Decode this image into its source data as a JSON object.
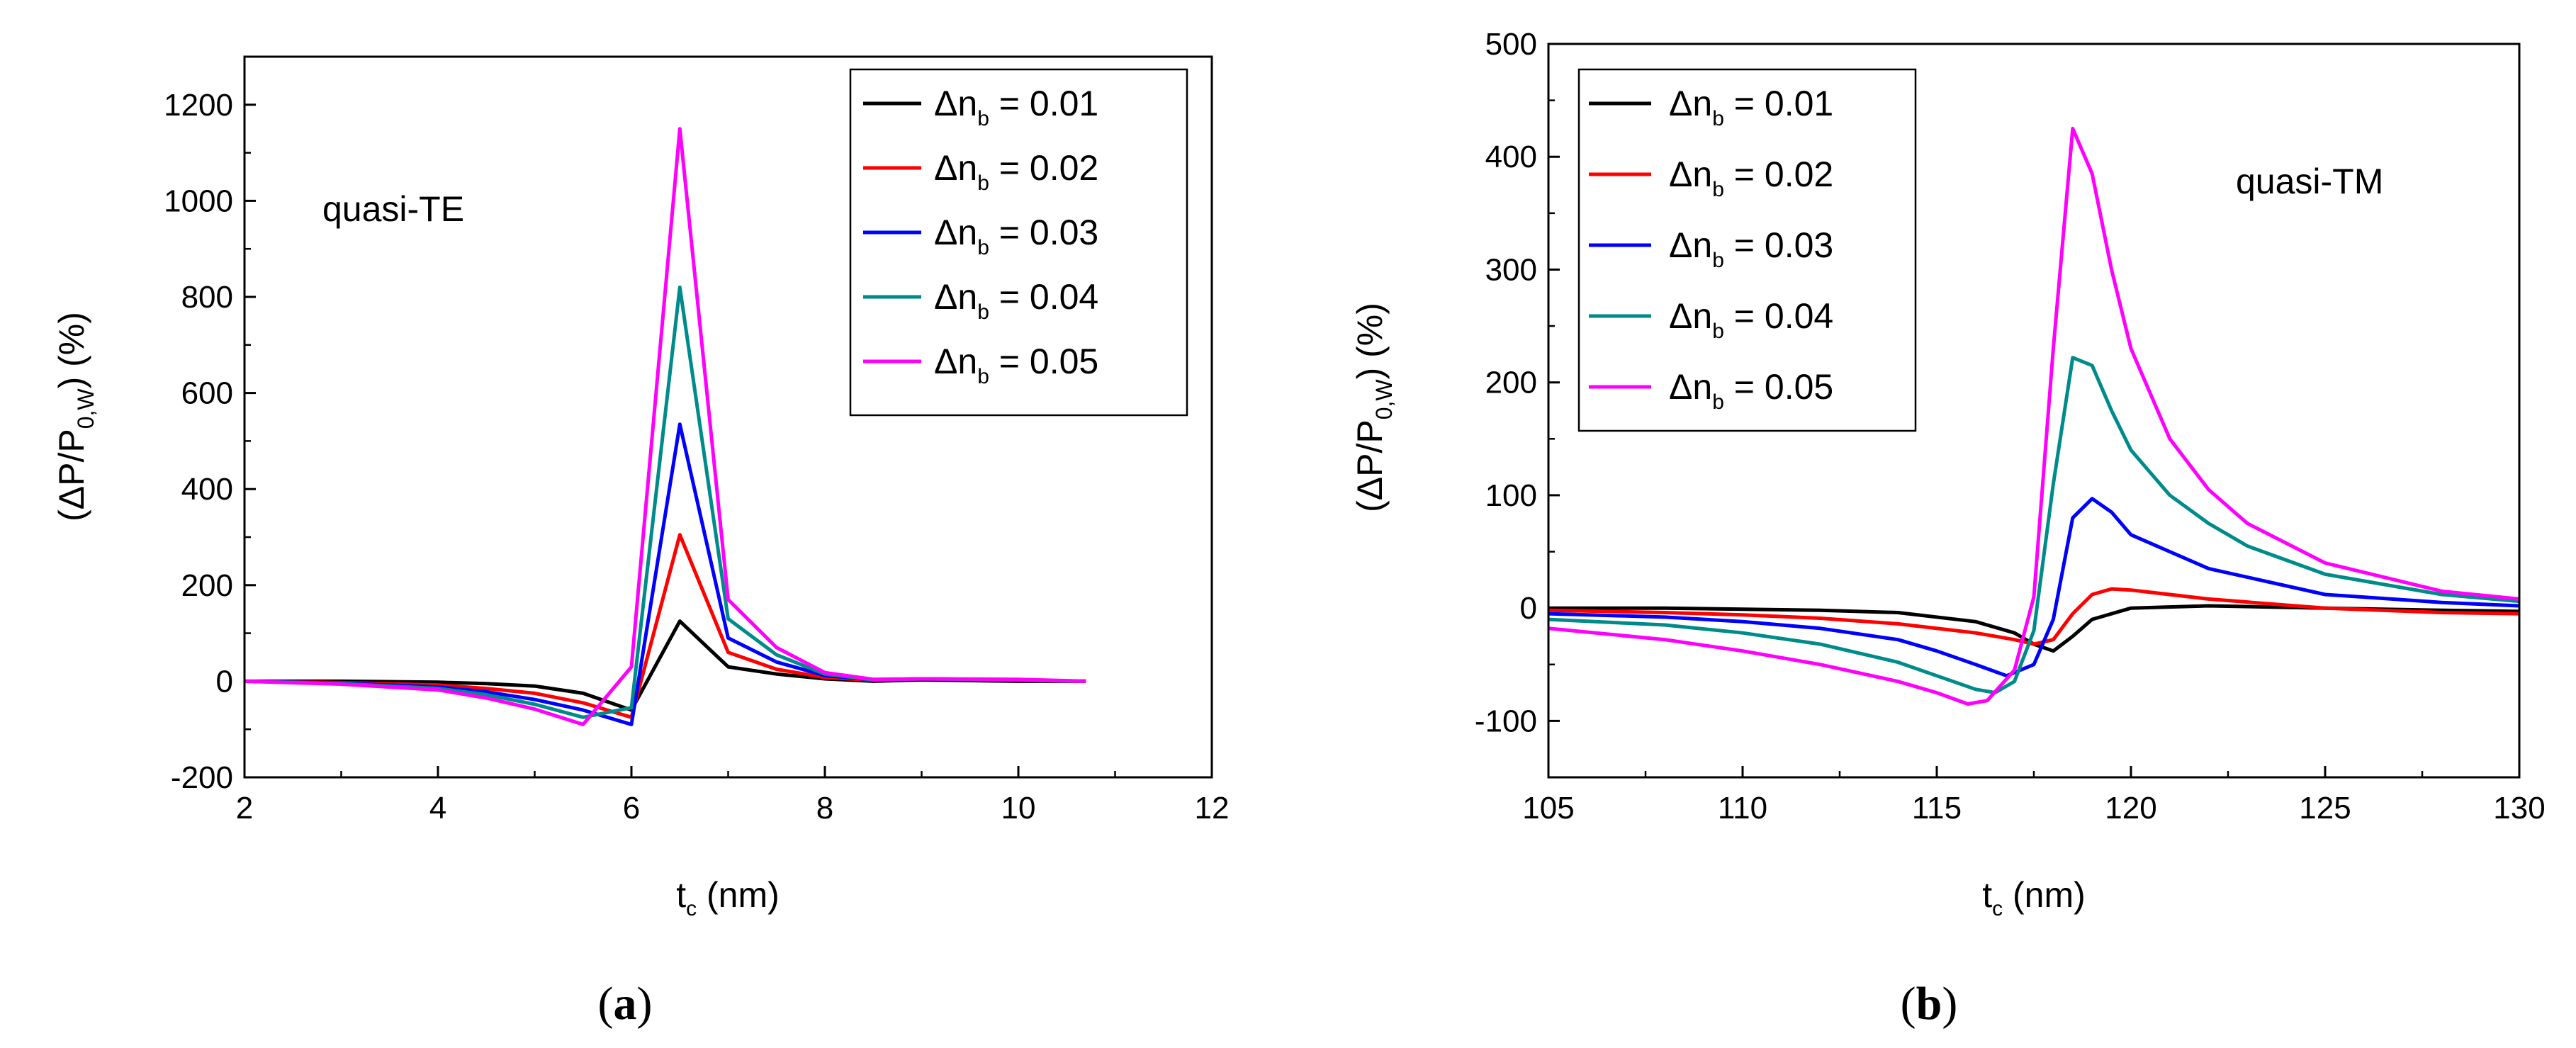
{
  "chart_data": [
    {
      "type": "line",
      "panel_label": "a",
      "annotation": "quasi-TE",
      "xlabel": {
        "main": "t",
        "sub": "c",
        "rest": " (nm)"
      },
      "ylabel": {
        "pre": "(ΔP/P",
        "sub": "0,W",
        "post": ") (%)"
      },
      "xlim": [
        2,
        12
      ],
      "ylim": [
        -200,
        1300
      ],
      "xticks": [
        2,
        4,
        6,
        8,
        10,
        12
      ],
      "yticks": [
        -200,
        0,
        200,
        400,
        600,
        800,
        1000,
        1200
      ],
      "legend_position": "top-right",
      "series": [
        {
          "name": "Δn",
          "sub": "b",
          "value_text": " = 0.01",
          "color": "#000000",
          "x": [
            2,
            3,
            4,
            4.5,
            5,
            5.5,
            6,
            6.5,
            7,
            7.5,
            8,
            8.5,
            9,
            10,
            10.7
          ],
          "y": [
            0,
            0,
            -2,
            -5,
            -10,
            -25,
            -60,
            125,
            30,
            15,
            5,
            0,
            3,
            0,
            0
          ]
        },
        {
          "name": "Δn",
          "sub": "b",
          "value_text": " = 0.02",
          "color": "#ff0000",
          "x": [
            2,
            3,
            4,
            4.5,
            5,
            5.5,
            6,
            6.5,
            7,
            7.5,
            8,
            8.5,
            9,
            10,
            10.7
          ],
          "y": [
            0,
            -3,
            -8,
            -15,
            -25,
            -45,
            -75,
            305,
            60,
            25,
            8,
            2,
            5,
            2,
            0
          ]
        },
        {
          "name": "Δn",
          "sub": "b",
          "value_text": " = 0.03",
          "color": "#0000ff",
          "x": [
            2,
            3,
            4,
            4.5,
            5,
            5.5,
            6,
            6.5,
            7,
            7.5,
            8,
            8.5,
            9,
            10,
            10.7
          ],
          "y": [
            0,
            -4,
            -12,
            -22,
            -38,
            -60,
            -90,
            535,
            90,
            40,
            12,
            3,
            5,
            3,
            0
          ]
        },
        {
          "name": "Δn",
          "sub": "b",
          "value_text": " = 0.04",
          "color": "#008b8b",
          "x": [
            2,
            3,
            4,
            4.5,
            5,
            5.5,
            6,
            6.5,
            7,
            7.5,
            8,
            8.5,
            9,
            10,
            10.7
          ],
          "y": [
            0,
            -5,
            -15,
            -28,
            -48,
            -75,
            -55,
            820,
            130,
            55,
            15,
            3,
            5,
            3,
            0
          ]
        },
        {
          "name": "Δn",
          "sub": "b",
          "value_text": " = 0.05",
          "color": "#ff00ff",
          "x": [
            2,
            3,
            4,
            4.5,
            5,
            5.5,
            6,
            6.5,
            7,
            7.5,
            8,
            8.5,
            9,
            10,
            10.7
          ],
          "y": [
            0,
            -6,
            -18,
            -35,
            -58,
            -90,
            30,
            1150,
            170,
            70,
            18,
            4,
            5,
            4,
            0
          ]
        }
      ]
    },
    {
      "type": "line",
      "panel_label": "b",
      "annotation": "quasi-TM",
      "xlabel": {
        "main": "t",
        "sub": "c",
        "rest": " (nm)"
      },
      "ylabel": {
        "pre": "(ΔP/P",
        "sub": "0,W",
        "post": ") (%)"
      },
      "xlim": [
        105,
        130
      ],
      "ylim": [
        -150,
        500
      ],
      "xticks": [
        105,
        110,
        115,
        120,
        125,
        130
      ],
      "yticks": [
        -100,
        0,
        100,
        200,
        300,
        400,
        500
      ],
      "legend_position": "top-left",
      "series": [
        {
          "name": "Δn",
          "sub": "b",
          "value_text": " = 0.01",
          "color": "#000000",
          "x": [
            105,
            108,
            110,
            112,
            114,
            116,
            117,
            117.5,
            118,
            118.5,
            119,
            120,
            122,
            125,
            128,
            130
          ],
          "y": [
            0,
            0,
            -1,
            -2,
            -4,
            -12,
            -22,
            -32,
            -38,
            -25,
            -10,
            0,
            2,
            0,
            -2,
            -3
          ]
        },
        {
          "name": "Δn",
          "sub": "b",
          "value_text": " = 0.02",
          "color": "#ff0000",
          "x": [
            105,
            108,
            110,
            112,
            114,
            116,
            117,
            117.5,
            118,
            118.5,
            119,
            119.5,
            120,
            122,
            125,
            128,
            130
          ],
          "y": [
            -2,
            -4,
            -6,
            -9,
            -14,
            -22,
            -28,
            -32,
            -28,
            -5,
            12,
            17,
            16,
            8,
            0,
            -4,
            -5
          ]
        },
        {
          "name": "Δn",
          "sub": "b",
          "value_text": " = 0.03",
          "color": "#0000ff",
          "x": [
            105,
            108,
            110,
            112,
            114,
            115,
            116,
            116.8,
            117.5,
            118,
            118.5,
            119,
            119.5,
            120,
            122,
            125,
            128,
            130
          ],
          "y": [
            -5,
            -8,
            -12,
            -18,
            -28,
            -38,
            -50,
            -60,
            -50,
            -10,
            80,
            97,
            85,
            65,
            35,
            12,
            5,
            2
          ]
        },
        {
          "name": "Δn",
          "sub": "b",
          "value_text": " = 0.04",
          "color": "#008b8b",
          "x": [
            105,
            108,
            110,
            112,
            114,
            115,
            116,
            116.5,
            117,
            117.5,
            118,
            118.5,
            119,
            119.5,
            120,
            121,
            122,
            123,
            125,
            128,
            130
          ],
          "y": [
            -10,
            -15,
            -22,
            -32,
            -48,
            -60,
            -72,
            -75,
            -65,
            -20,
            110,
            222,
            215,
            175,
            140,
            100,
            75,
            55,
            30,
            12,
            6
          ]
        },
        {
          "name": "Δn",
          "sub": "b",
          "value_text": " = 0.05",
          "color": "#ff00ff",
          "x": [
            105,
            108,
            110,
            112,
            114,
            115,
            115.8,
            116.3,
            117,
            117.5,
            118,
            118.5,
            119,
            119.5,
            120,
            121,
            122,
            123,
            125,
            128,
            130
          ],
          "y": [
            -18,
            -28,
            -38,
            -50,
            -65,
            -75,
            -85,
            -82,
            -55,
            10,
            230,
            425,
            385,
            300,
            230,
            150,
            105,
            75,
            40,
            15,
            8
          ]
        }
      ]
    }
  ]
}
